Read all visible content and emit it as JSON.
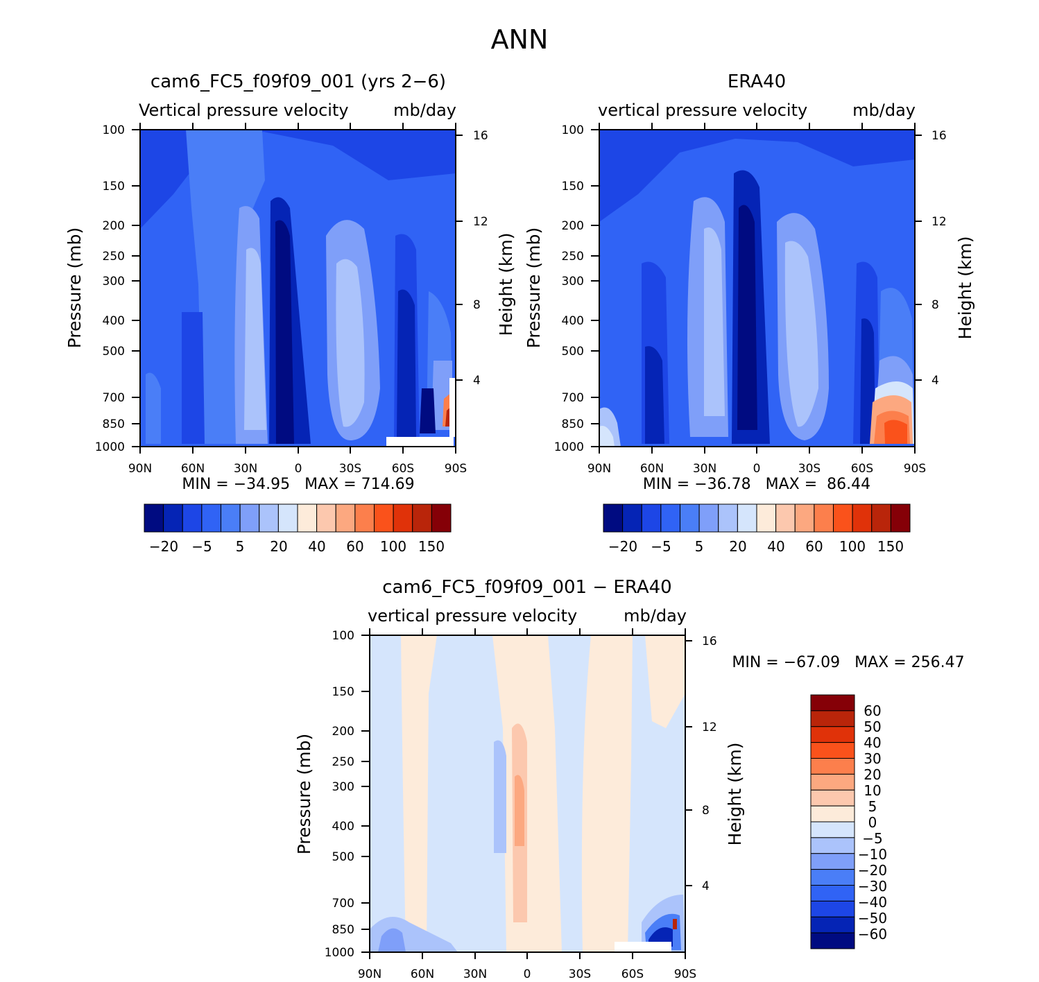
{
  "page": {
    "title": "ANN"
  },
  "colors": {
    "abs": [
      "#000b81",
      "#0524b5",
      "#1d46e6",
      "#3063f5",
      "#4a7ef7",
      "#7f9ff9",
      "#abc3fb",
      "#d5e5fc",
      "#fdebda",
      "#fcc8ae",
      "#fca880",
      "#fc7f4c",
      "#fa521b",
      "#e03209",
      "#b9250a",
      "#850007"
    ],
    "diff": [
      "#000b81",
      "#0524b5",
      "#1d46e6",
      "#3063f5",
      "#4a7ef7",
      "#7f9ff9",
      "#abc3fb",
      "#d5e5fc",
      "#fdebda",
      "#fcc8ae",
      "#fca880",
      "#fc7f4c",
      "#fa521b",
      "#e03209",
      "#b9250a",
      "#850007"
    ]
  },
  "chart_data": [
    {
      "type": "contour",
      "title": "cam6_FC5_f09f09_001 (yrs 2−6)",
      "subtitle_left": "Vertical pressure velocity",
      "subtitle_right": "mb/day",
      "ylabel": "Pressure (mb)",
      "ylabel_right": "Height (km)",
      "x_ticks": [
        "90N",
        "60N",
        "30N",
        "0",
        "30S",
        "60S",
        "90S"
      ],
      "y_ticks": [
        "100",
        "150",
        "200",
        "250",
        "300",
        "400",
        "500",
        "700",
        "850",
        "1000"
      ],
      "y_right_ticks": [
        "16",
        "12",
        "8",
        "4"
      ],
      "minmax": "MIN = −34.95   MAX = 714.69",
      "colorbar_labels": [
        "−20",
        "−5",
        "5",
        "20",
        "40",
        "60",
        "100",
        "150"
      ]
    },
    {
      "type": "contour",
      "title": "ERA40",
      "subtitle_left": "vertical pressure velocity",
      "subtitle_right": "mb/day",
      "ylabel": "Pressure (mb)",
      "ylabel_right": "Height (km)",
      "x_ticks": [
        "90N",
        "60N",
        "30N",
        "0",
        "30S",
        "60S",
        "90S"
      ],
      "y_ticks": [
        "100",
        "150",
        "200",
        "250",
        "300",
        "400",
        "500",
        "700",
        "850",
        "1000"
      ],
      "y_right_ticks": [
        "16",
        "12",
        "8",
        "4"
      ],
      "minmax": "MIN = −36.78   MAX =  86.44",
      "colorbar_labels": [
        "−20",
        "−5",
        "5",
        "20",
        "40",
        "60",
        "100",
        "150"
      ]
    },
    {
      "type": "contour",
      "title": "cam6_FC5_f09f09_001 − ERA40",
      "subtitle_left": "vertical pressure velocity",
      "subtitle_right": "mb/day",
      "ylabel": "Pressure (mb)",
      "ylabel_right": "Height (km)",
      "x_ticks": [
        "90N",
        "60N",
        "30N",
        "0",
        "30S",
        "60S",
        "90S"
      ],
      "y_ticks": [
        "100",
        "150",
        "200",
        "250",
        "300",
        "400",
        "500",
        "700",
        "850",
        "1000"
      ],
      "y_right_ticks": [
        "16",
        "12",
        "8",
        "4"
      ],
      "minmax": "MIN = −67.09   MAX = 256.47",
      "colorbar_labels": [
        "60",
        "50",
        "40",
        "30",
        "20",
        "10",
        "5",
        "0",
        "−5",
        "−10",
        "−20",
        "−30",
        "−40",
        "−50",
        "−60"
      ]
    }
  ]
}
